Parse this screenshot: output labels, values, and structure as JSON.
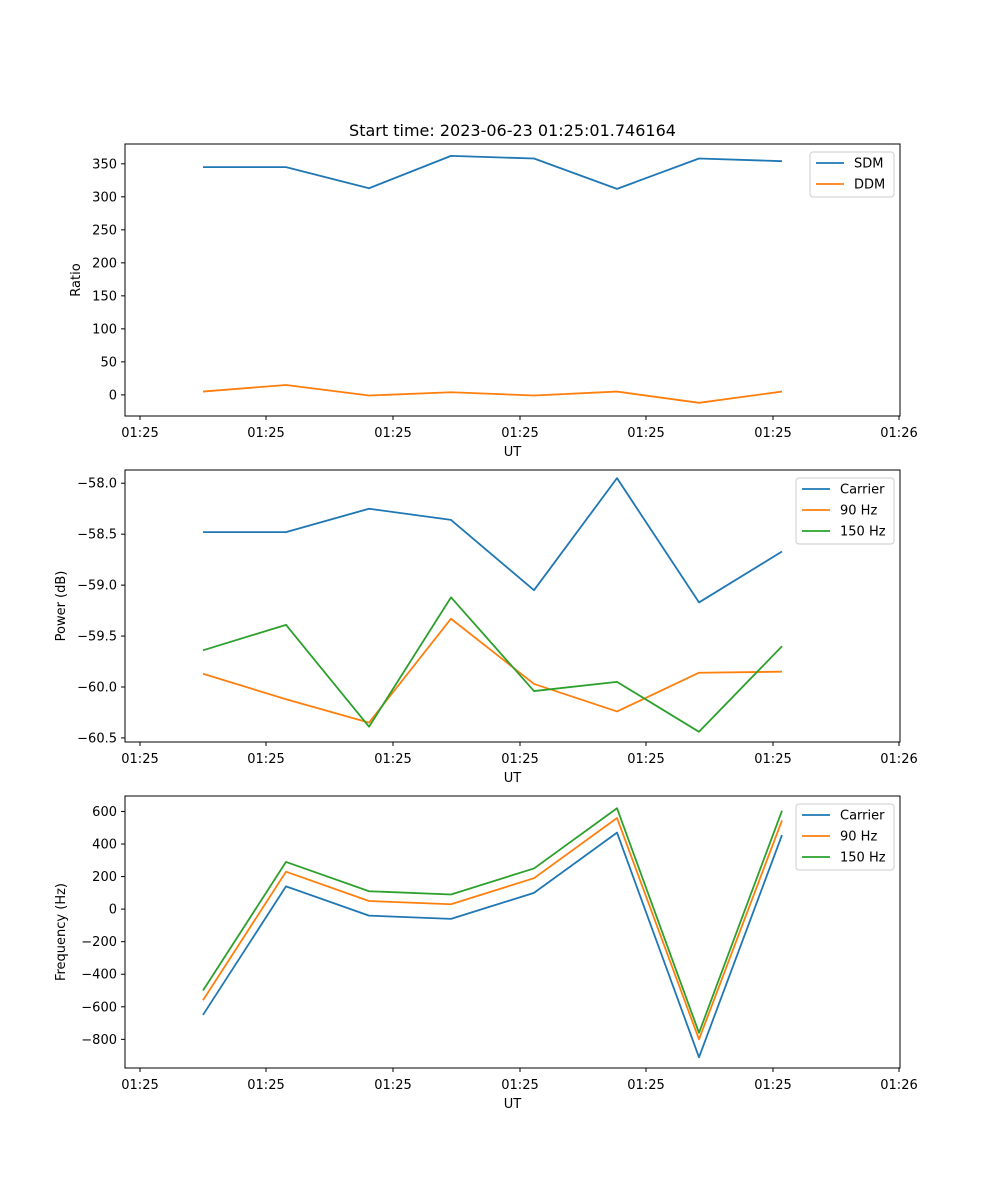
{
  "figure": {
    "title": "Start time: 2023-06-23 01:25:01.746164"
  },
  "chart_data": [
    {
      "type": "line",
      "name": "ratio-chart",
      "title": "Start time: 2023-06-23 01:25:01.746164",
      "xlabel": "UT",
      "ylabel": "Ratio",
      "x_tick_labels": [
        "01:25",
        "01:25",
        "01:25",
        "01:25",
        "01:25",
        "01:25",
        "01:26"
      ],
      "ylim": [
        -32,
        380
      ],
      "yticks": [
        0,
        50,
        100,
        150,
        200,
        250,
        300,
        350
      ],
      "ytick_labels": [
        "0",
        "50",
        "100",
        "150",
        "200",
        "250",
        "300",
        "350"
      ],
      "legend_position": "top-right",
      "series": [
        {
          "name": "SDM",
          "color": "#1f77b4",
          "values": [
            345,
            345,
            313,
            362,
            358,
            312,
            358,
            354
          ]
        },
        {
          "name": "DDM",
          "color": "#ff7f0e",
          "values": [
            5,
            15,
            -1,
            4,
            -1,
            5,
            -12,
            5
          ]
        }
      ]
    },
    {
      "type": "line",
      "name": "power-chart",
      "xlabel": "UT",
      "ylabel": "Power (dB)",
      "x_tick_labels": [
        "01:25",
        "01:25",
        "01:25",
        "01:25",
        "01:25",
        "01:25",
        "01:26"
      ],
      "ylim": [
        -60.54,
        -57.87
      ],
      "yticks": [
        -60.5,
        -60.0,
        -59.5,
        -59.0,
        -58.5,
        -58.0
      ],
      "ytick_labels": [
        "−60.5",
        "−60.0",
        "−59.5",
        "−59.0",
        "−58.5",
        "−58.0"
      ],
      "legend_position": "top-right",
      "series": [
        {
          "name": "Carrier",
          "color": "#1f77b4",
          "values": [
            -58.48,
            -58.48,
            -58.25,
            -58.36,
            -59.05,
            -57.95,
            -59.17,
            -58.67
          ]
        },
        {
          "name": "90 Hz",
          "color": "#ff7f0e",
          "values": [
            -59.87,
            -60.12,
            -60.35,
            -59.33,
            -59.97,
            -60.24,
            -59.86,
            -59.85
          ]
        },
        {
          "name": "150 Hz",
          "color": "#2ca02c",
          "values": [
            -59.64,
            -59.39,
            -60.39,
            -59.12,
            -60.04,
            -59.95,
            -60.44,
            -59.6
          ]
        }
      ]
    },
    {
      "type": "line",
      "name": "frequency-chart",
      "xlabel": "UT",
      "ylabel": "Frequency (Hz)",
      "x_tick_labels": [
        "01:25",
        "01:25",
        "01:25",
        "01:25",
        "01:25",
        "01:25",
        "01:26"
      ],
      "ylim": [
        -976,
        695
      ],
      "yticks": [
        -800,
        -600,
        -400,
        -200,
        0,
        200,
        400,
        600
      ],
      "ytick_labels": [
        "−800",
        "−600",
        "−400",
        "−200",
        "0",
        "200",
        "400",
        "600"
      ],
      "legend_position": "top-right",
      "series": [
        {
          "name": "Carrier",
          "color": "#1f77b4",
          "values": [
            -650,
            140,
            -40,
            -60,
            100,
            470,
            -910,
            455
          ]
        },
        {
          "name": "90 Hz",
          "color": "#ff7f0e",
          "values": [
            -560,
            230,
            50,
            30,
            190,
            560,
            -800,
            545
          ]
        },
        {
          "name": "150 Hz",
          "color": "#2ca02c",
          "values": [
            -500,
            290,
            110,
            90,
            250,
            620,
            -760,
            605
          ]
        }
      ]
    }
  ]
}
